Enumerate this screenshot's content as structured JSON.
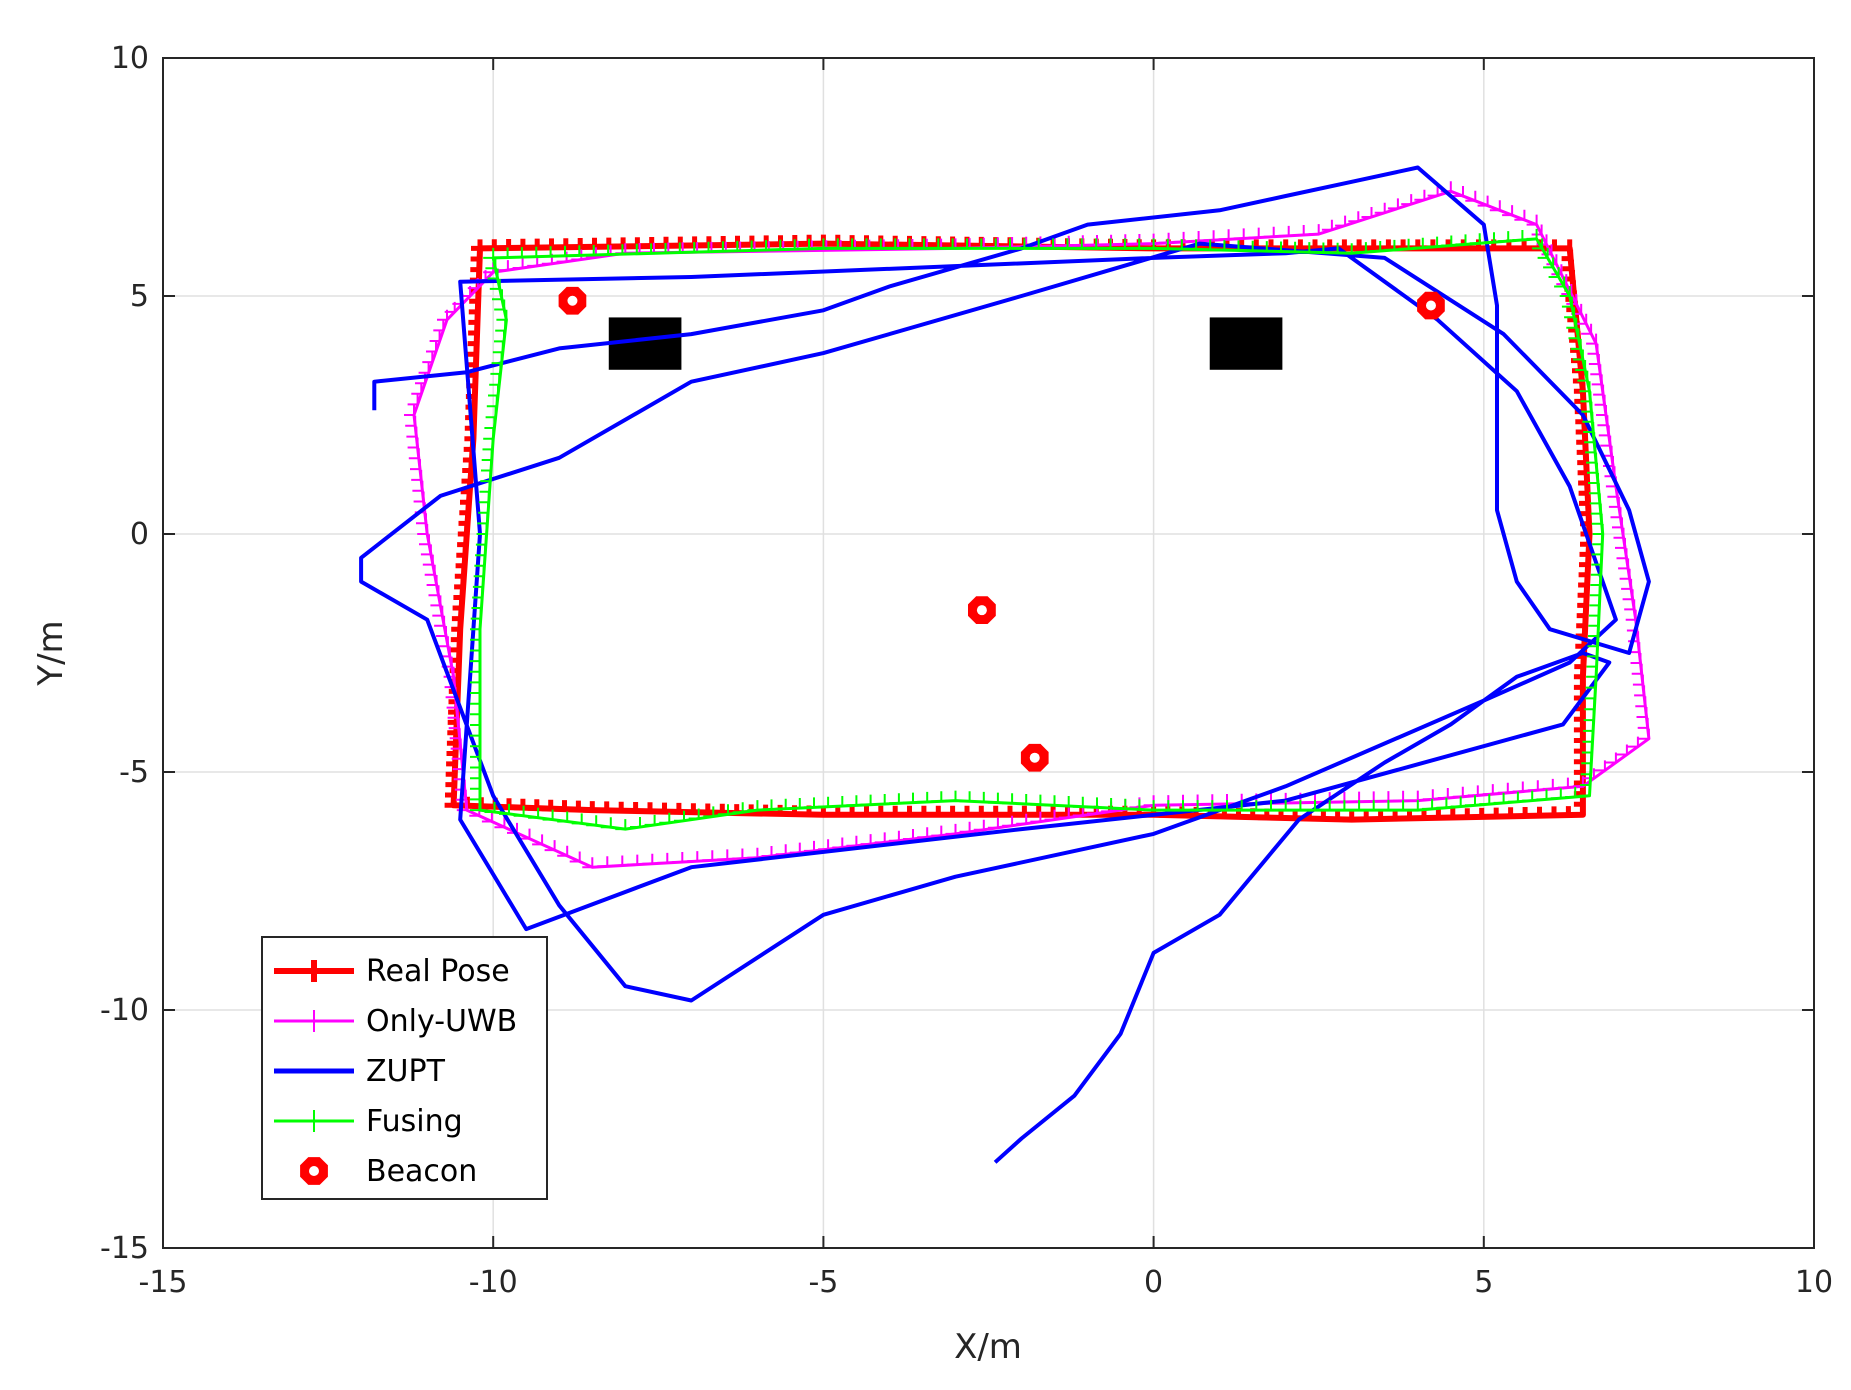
{
  "chart_data": {
    "type": "line",
    "xlabel": "X/m",
    "ylabel": "Y/m",
    "xlim": [
      -15,
      10
    ],
    "ylim": [
      -15,
      10
    ],
    "xticks": [
      -15,
      -10,
      -5,
      0,
      5,
      10
    ],
    "yticks": [
      -15,
      -10,
      -5,
      0,
      5,
      10
    ],
    "xtick_labels": [
      "-15",
      "-10",
      "-5",
      "0",
      "5",
      "10"
    ],
    "ytick_labels": [
      "-15",
      "-10",
      "-5",
      "0",
      "5",
      "10"
    ],
    "grid": true,
    "legend_position": "bottom-left",
    "series": [
      {
        "name": "Real Pose",
        "color": "#ff0000",
        "marker": "plus-bold",
        "points": [
          [
            -10.2,
            6.0
          ],
          [
            -5,
            6.1
          ],
          [
            0,
            6.0
          ],
          [
            4,
            6.0
          ],
          [
            6.3,
            6.0
          ],
          [
            6.5,
            3
          ],
          [
            6.6,
            0
          ],
          [
            6.5,
            -3
          ],
          [
            6.5,
            -5.9
          ],
          [
            3,
            -6.0
          ],
          [
            0,
            -5.9
          ],
          [
            -5,
            -5.9
          ],
          [
            -8.5,
            -5.8
          ],
          [
            -10.6,
            -5.7
          ],
          [
            -10.5,
            -2
          ],
          [
            -10.3,
            2
          ],
          [
            -10.2,
            6.0
          ]
        ]
      },
      {
        "name": "Only-UWB",
        "color": "#ff00ff",
        "marker": "plus",
        "points": [
          [
            -10.0,
            5.5
          ],
          [
            -8,
            5.9
          ],
          [
            -3,
            6.0
          ],
          [
            0,
            6.1
          ],
          [
            2.5,
            6.3
          ],
          [
            4.5,
            7.2
          ],
          [
            5.8,
            6.5
          ],
          [
            6.7,
            4
          ],
          [
            7,
            1
          ],
          [
            7.3,
            -1.8
          ],
          [
            7.5,
            -4.3
          ],
          [
            6.5,
            -5.3
          ],
          [
            4,
            -5.6
          ],
          [
            0,
            -5.7
          ],
          [
            -3,
            -6.3
          ],
          [
            -6,
            -6.8
          ],
          [
            -8.5,
            -7.0
          ],
          [
            -10.4,
            -5.8
          ],
          [
            -10.6,
            -3
          ],
          [
            -11,
            0
          ],
          [
            -11.2,
            2.5
          ],
          [
            -10.7,
            4.5
          ],
          [
            -10.0,
            5.5
          ]
        ]
      },
      {
        "name": "ZUPT",
        "color": "#0000ff",
        "marker": "none",
        "points": [
          [
            -2.4,
            -13.2
          ],
          [
            -2,
            -12.7
          ],
          [
            -1.2,
            -11.8
          ],
          [
            -0.5,
            -10.5
          ],
          [
            0,
            -8.8
          ],
          [
            1,
            -8.0
          ],
          [
            2.2,
            -6.0
          ],
          [
            3.5,
            -4.8
          ],
          [
            4.5,
            -4.0
          ],
          [
            5.5,
            -3.0
          ],
          [
            6.5,
            -2.5
          ],
          [
            6.9,
            -2.7
          ],
          [
            6.2,
            -4.0
          ],
          [
            2,
            -5.6
          ],
          [
            -2,
            -6.2
          ],
          [
            -7,
            -7.0
          ],
          [
            -9.5,
            -8.3
          ],
          [
            -10.5,
            -6.0
          ],
          [
            -10.2,
            0
          ],
          [
            -10.5,
            5.3
          ],
          [
            -7,
            5.4
          ],
          [
            0,
            5.8
          ],
          [
            2,
            5.9
          ],
          [
            2.8,
            6.0
          ],
          [
            4.3,
            4.5
          ],
          [
            5.5,
            3.0
          ],
          [
            6.3,
            1
          ],
          [
            6.7,
            -0.6
          ],
          [
            7.0,
            -1.8
          ],
          [
            6.3,
            -2.7
          ],
          [
            5,
            -3.5
          ],
          [
            2,
            -5.3
          ],
          [
            0,
            -6.3
          ],
          [
            -3,
            -7.2
          ],
          [
            -5,
            -8.0
          ],
          [
            -7,
            -9.8
          ],
          [
            -8,
            -9.5
          ],
          [
            -9,
            -7.8
          ],
          [
            -10.0,
            -5.5
          ],
          [
            -11,
            -1.8
          ],
          [
            -12,
            -1.0
          ],
          [
            -12.0,
            -0.5
          ],
          [
            -10.8,
            0.8
          ],
          [
            -9,
            1.6
          ],
          [
            -7,
            3.2
          ],
          [
            -5,
            3.8
          ],
          [
            -2,
            5.0
          ],
          [
            0.7,
            6.1
          ],
          [
            3.5,
            5.8
          ],
          [
            5.3,
            4.2
          ],
          [
            6.5,
            2.5
          ],
          [
            7.2,
            0.5
          ],
          [
            7.5,
            -1.0
          ],
          [
            7.2,
            -2.5
          ],
          [
            6.0,
            -2.0
          ],
          [
            5.5,
            -1.0
          ],
          [
            5.2,
            0.5
          ],
          [
            5.2,
            3.0
          ],
          [
            5.2,
            4.8
          ],
          [
            5.0,
            6.5
          ],
          [
            4,
            7.7
          ],
          [
            3,
            7.4
          ],
          [
            2,
            7.1
          ],
          [
            1,
            6.8
          ],
          [
            -1,
            6.5
          ],
          [
            -2,
            6.0
          ],
          [
            -4,
            5.2
          ],
          [
            -5,
            4.7
          ],
          [
            -7,
            4.2
          ],
          [
            -9,
            3.9
          ],
          [
            -10.4,
            3.4
          ],
          [
            -11.8,
            3.2
          ],
          [
            -11.8,
            2.6
          ]
        ]
      },
      {
        "name": "Fusing",
        "color": "#00ff00",
        "marker": "plus",
        "points": [
          [
            -10.0,
            5.8
          ],
          [
            -5,
            6.0
          ],
          [
            0,
            6.0
          ],
          [
            3,
            5.9
          ],
          [
            5.8,
            6.2
          ],
          [
            6.3,
            5.0
          ],
          [
            6.6,
            3
          ],
          [
            6.8,
            0
          ],
          [
            6.7,
            -3
          ],
          [
            6.6,
            -5.5
          ],
          [
            4,
            -5.8
          ],
          [
            0,
            -5.8
          ],
          [
            -3,
            -5.6
          ],
          [
            -6,
            -5.8
          ],
          [
            -8,
            -6.2
          ],
          [
            -10.2,
            -5.8
          ],
          [
            -10.2,
            -2
          ],
          [
            -10.0,
            2
          ],
          [
            -9.8,
            4.5
          ],
          [
            -10.0,
            5.8
          ]
        ]
      },
      {
        "name": "Beacon",
        "color": "#ff0000",
        "marker": "octagon",
        "points": [
          [
            -8.8,
            4.9
          ],
          [
            4.2,
            4.8
          ],
          [
            -2.6,
            -1.6
          ],
          [
            -1.8,
            -4.7
          ]
        ]
      }
    ],
    "obstacles": [
      {
        "center": [
          -7.7,
          4.0
        ],
        "size": 1.1
      },
      {
        "center": [
          1.4,
          4.0
        ],
        "size": 1.1
      }
    ]
  }
}
